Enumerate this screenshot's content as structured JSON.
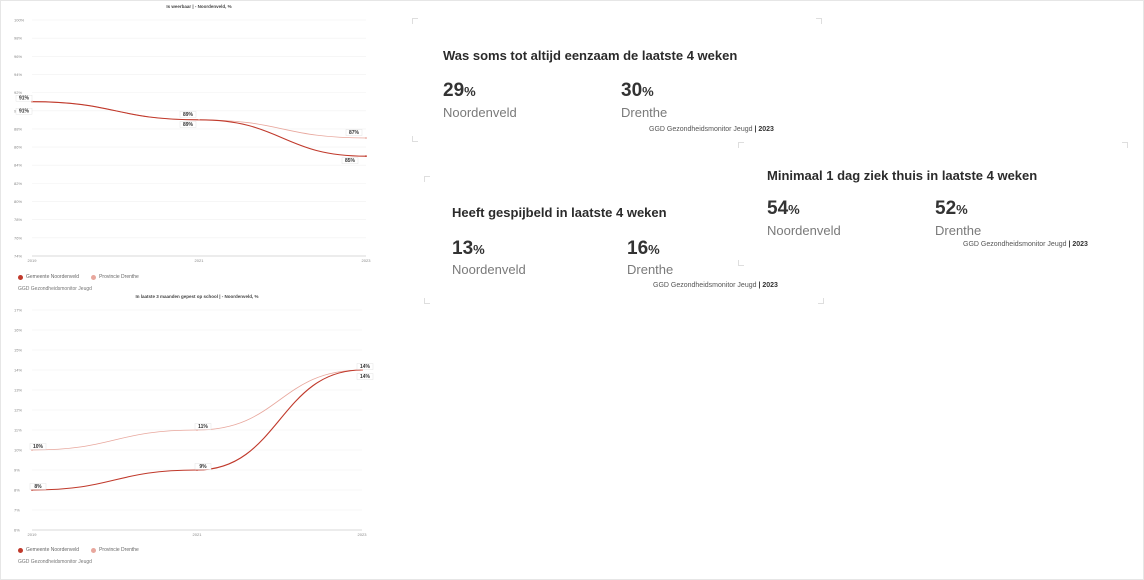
{
  "chart_data": [
    {
      "type": "line",
      "title": "Is weerbaar | - Noordenveld, %",
      "x": [
        "2019",
        "2021",
        "2023"
      ],
      "ylim": [
        74,
        100
      ],
      "yticks": [
        "100%",
        "98%",
        "96%",
        "94%",
        "92%",
        "90%",
        "88%",
        "86%",
        "84%",
        "82%",
        "80%",
        "78%",
        "76%",
        "74%"
      ],
      "series": [
        {
          "name": "Gemeente Noordenveld",
          "values": [
            91,
            89,
            85
          ],
          "labels": [
            "91%",
            "89%",
            "85%"
          ],
          "color": "#c0392b"
        },
        {
          "name": "Provincie Drenthe",
          "values": [
            91,
            89,
            87
          ],
          "labels": [
            "91%",
            "89%",
            "87%"
          ],
          "color": "#e8a79d"
        }
      ],
      "source": "GGD Gezondheidsmonitor Jeugd",
      "grid": true,
      "legend": "bottom-left"
    },
    {
      "type": "line",
      "title": "In laatste 3 maanden gepest op school | - Noordenveld, %",
      "x": [
        "2019",
        "2021",
        "2023"
      ],
      "ylim": [
        6,
        17
      ],
      "yticks": [
        "17%",
        "16%",
        "15%",
        "14%",
        "13%",
        "12%",
        "11%",
        "10%",
        "9%",
        "8%",
        "7%",
        "6%"
      ],
      "series": [
        {
          "name": "Gemeente Noordenveld",
          "values": [
            8,
            9,
            14
          ],
          "labels": [
            "8%",
            "9%",
            "14%"
          ],
          "color": "#c0392b"
        },
        {
          "name": "Provincie Drenthe",
          "values": [
            10,
            11,
            14
          ],
          "labels": [
            "10%",
            "11%",
            "14%"
          ],
          "color": "#e8a79d"
        }
      ],
      "source": "GGD Gezondheidsmonitor Jeugd",
      "grid": true,
      "legend": "bottom-left"
    }
  ],
  "kpis": [
    {
      "title": "Was soms tot altijd eenzaam de laatste 4 weken",
      "a_value": "29",
      "a_pct": "%",
      "a_name": "Noordenveld",
      "b_value": "30",
      "b_pct": "%",
      "b_name": "Drenthe",
      "source_a": "GGD Gezondheidsmonitor Jeugd",
      "source_b": " | 2023"
    },
    {
      "title": "Heeft gespijbeld in laatste 4 weken",
      "a_value": "13",
      "a_pct": "%",
      "a_name": "Noordenveld",
      "b_value": "16",
      "b_pct": "%",
      "b_name": "Drenthe",
      "source_a": "GGD Gezondheidsmonitor Jeugd",
      "source_b": " | 2023"
    },
    {
      "title": "Minimaal 1 dag ziek thuis in laatste 4 weken",
      "a_value": "54",
      "a_pct": "%",
      "a_name": "Noordenveld",
      "b_value": "52",
      "b_pct": "%",
      "b_name": "Drenthe",
      "source_a": "GGD Gezondheidsmonitor Jeugd",
      "source_b": " | 2023"
    }
  ]
}
